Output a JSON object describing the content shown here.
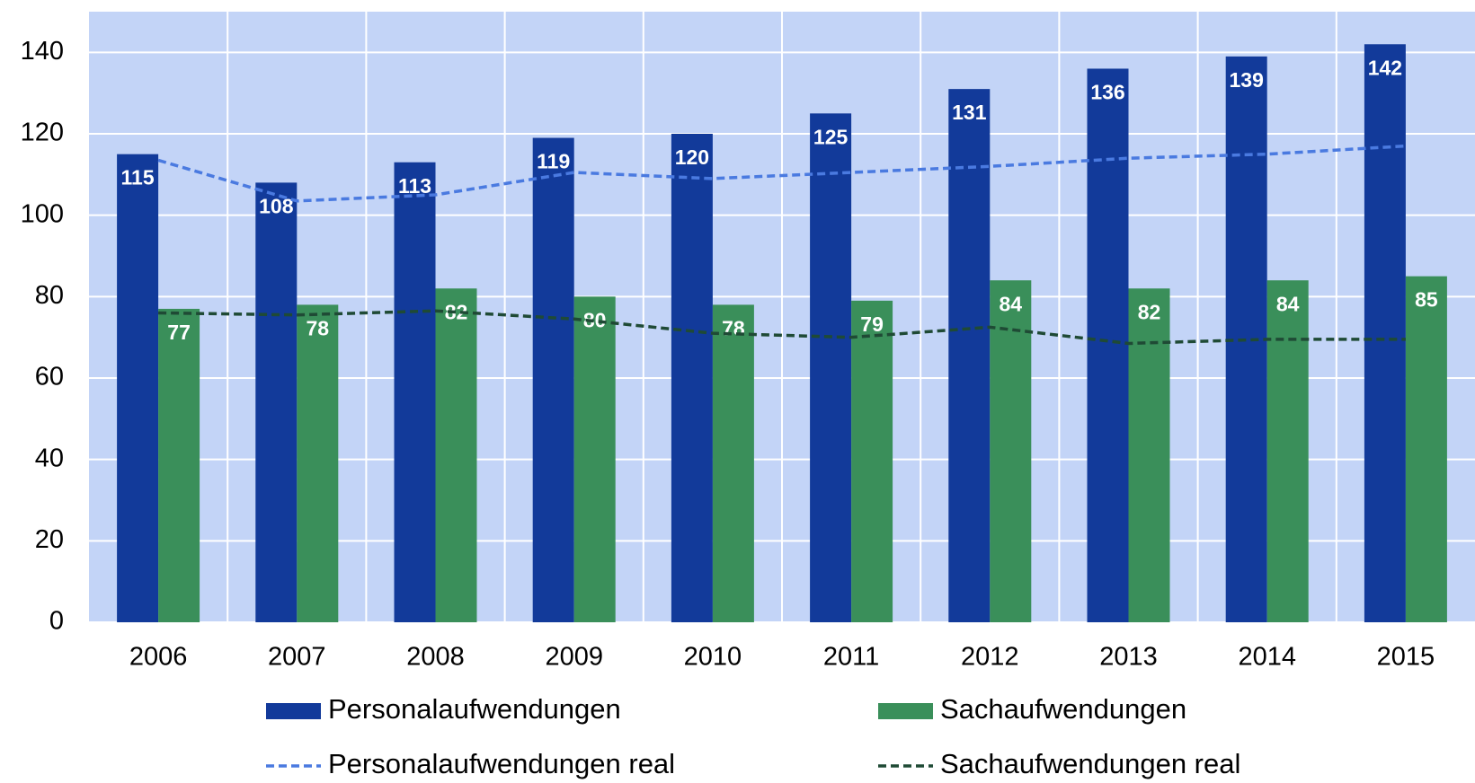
{
  "chart_data": {
    "type": "bar",
    "categories": [
      "2006",
      "2007",
      "2008",
      "2009",
      "2010",
      "2011",
      "2012",
      "2013",
      "2014",
      "2015"
    ],
    "series": [
      {
        "name": "Personalaufwendungen",
        "type": "bar",
        "color": "#123a9a",
        "values": [
          115,
          108,
          113,
          119,
          120,
          125,
          131,
          136,
          139,
          142
        ]
      },
      {
        "name": "Sachaufwendungen",
        "type": "bar",
        "color": "#3a8f5a",
        "values": [
          77,
          78,
          82,
          80,
          78,
          79,
          84,
          82,
          84,
          85
        ]
      },
      {
        "name": "Personalaufwendungen real",
        "type": "line",
        "color": "#4a7ae0",
        "values": [
          113.5,
          103.5,
          105,
          110.5,
          109,
          110.5,
          112,
          114,
          115,
          117
        ]
      },
      {
        "name": "Sachaufwendungen real",
        "type": "line",
        "color": "#1f4a35",
        "values": [
          76,
          75.5,
          76.5,
          74.5,
          71,
          70,
          72.5,
          68.5,
          69.5,
          69.5
        ]
      }
    ],
    "ylim": [
      0,
      150
    ],
    "yticks": [
      0,
      20,
      40,
      60,
      80,
      100,
      120,
      140
    ],
    "grid": true,
    "background": "#c3d4f7",
    "legend": "bottom"
  }
}
